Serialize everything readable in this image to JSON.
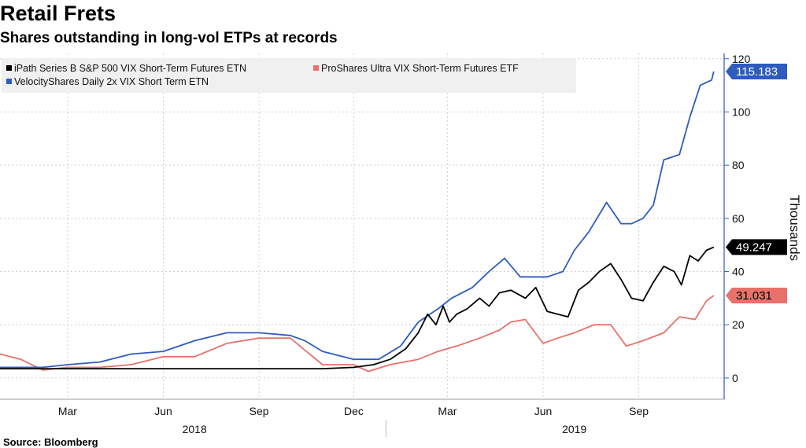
{
  "title": "Retail Frets",
  "subtitle": "Shares outstanding in long-vol ETPs at records",
  "source": "Source: Bloomberg",
  "chart_data": {
    "type": "line",
    "ylabel": "Thousands",
    "ylim": [
      -8,
      122
    ],
    "yticks": [
      0,
      20,
      40,
      60,
      80,
      100,
      120
    ],
    "xlim": [
      "2017-12-26",
      "2019-11-22"
    ],
    "month_ticks": [
      {
        "label": "Mar",
        "date": "2018-03-01"
      },
      {
        "label": "Jun",
        "date": "2018-06-01"
      },
      {
        "label": "Sep",
        "date": "2018-09-01"
      },
      {
        "label": "Dec",
        "date": "2018-12-01"
      },
      {
        "label": "Mar",
        "date": "2019-03-01"
      },
      {
        "label": "Jun",
        "date": "2019-06-01"
      },
      {
        "label": "Sep",
        "date": "2019-09-01"
      }
    ],
    "year_ticks": [
      {
        "label": "2018",
        "date": "2018-07-01"
      },
      {
        "label": "2019",
        "date": "2019-07-01"
      }
    ],
    "grid": true,
    "legend_position": "top-left",
    "series": [
      {
        "name": "iPath Series B S&P 500 VIX Short-Term Futures ETN",
        "color": "#000000",
        "last_value": "49.247",
        "x": [
          "2017-12-26",
          "2018-03-01",
          "2018-06-01",
          "2018-09-01",
          "2018-11-01",
          "2018-12-01",
          "2018-12-20",
          "2019-01-05",
          "2019-01-20",
          "2019-02-01",
          "2019-02-10",
          "2019-02-18",
          "2019-02-25",
          "2019-03-03",
          "2019-03-10",
          "2019-03-20",
          "2019-04-01",
          "2019-04-10",
          "2019-04-20",
          "2019-05-01",
          "2019-05-15",
          "2019-05-25",
          "2019-06-05",
          "2019-06-15",
          "2019-06-25",
          "2019-07-05",
          "2019-07-15",
          "2019-07-25",
          "2019-08-05",
          "2019-08-15",
          "2019-08-25",
          "2019-09-05",
          "2019-09-15",
          "2019-09-25",
          "2019-10-05",
          "2019-10-12",
          "2019-10-20",
          "2019-10-28",
          "2019-11-05",
          "2019-11-12"
        ],
        "y": [
          3.5,
          3.5,
          3.5,
          3.5,
          3.5,
          4,
          5,
          7,
          11,
          17,
          24,
          20,
          27,
          21,
          24,
          26,
          30,
          27,
          32,
          33,
          30,
          34,
          25,
          24,
          23,
          33,
          36,
          40,
          43,
          37,
          30,
          29,
          36,
          42,
          40,
          35,
          46,
          44,
          48,
          49.2
        ]
      },
      {
        "name": "ProShares Ultra VIX Short-Term Futures ETF",
        "color": "#e8716b",
        "last_value": "31.031",
        "x": [
          "2017-12-26",
          "2018-01-15",
          "2018-02-05",
          "2018-03-01",
          "2018-04-01",
          "2018-05-01",
          "2018-06-01",
          "2018-07-01",
          "2018-08-01",
          "2018-09-01",
          "2018-10-01",
          "2018-11-01",
          "2018-12-01",
          "2018-12-15",
          "2019-01-05",
          "2019-02-01",
          "2019-02-20",
          "2019-03-10",
          "2019-04-01",
          "2019-04-20",
          "2019-05-01",
          "2019-05-15",
          "2019-06-01",
          "2019-06-15",
          "2019-07-01",
          "2019-07-20",
          "2019-08-05",
          "2019-08-20",
          "2019-09-05",
          "2019-09-25",
          "2019-10-10",
          "2019-10-25",
          "2019-11-05",
          "2019-11-12"
        ],
        "y": [
          9,
          7,
          3,
          4,
          4,
          5,
          8,
          8,
          13,
          15,
          15,
          5,
          5,
          2.5,
          5,
          7,
          10,
          12,
          15,
          18,
          21,
          22,
          13,
          15,
          17,
          20,
          20,
          12,
          14,
          17,
          23,
          22,
          29,
          31
        ]
      },
      {
        "name": "VelocityShares Daily 2x VIX Short Term ETN",
        "color": "#2f5bbf",
        "last_value": "115.183",
        "x": [
          "2017-12-26",
          "2018-02-05",
          "2018-03-01",
          "2018-04-01",
          "2018-05-01",
          "2018-06-01",
          "2018-07-01",
          "2018-08-01",
          "2018-09-01",
          "2018-10-01",
          "2018-10-15",
          "2018-11-01",
          "2018-12-01",
          "2018-12-25",
          "2019-01-15",
          "2019-02-01",
          "2019-02-20",
          "2019-03-05",
          "2019-03-25",
          "2019-04-10",
          "2019-04-25",
          "2019-05-10",
          "2019-06-05",
          "2019-06-20",
          "2019-07-01",
          "2019-07-15",
          "2019-08-01",
          "2019-08-15",
          "2019-08-25",
          "2019-09-05",
          "2019-09-15",
          "2019-09-25",
          "2019-10-10",
          "2019-10-20",
          "2019-10-30",
          "2019-11-10",
          "2019-11-12"
        ],
        "y": [
          4,
          4,
          5,
          6,
          9,
          10,
          14,
          17,
          17,
          16,
          14,
          10,
          7,
          7,
          12,
          21,
          26,
          30,
          34,
          40,
          45,
          38,
          38,
          40,
          48,
          55,
          66,
          58,
          58,
          60,
          65,
          82,
          84,
          98,
          110,
          112,
          115.2
        ]
      }
    ]
  }
}
